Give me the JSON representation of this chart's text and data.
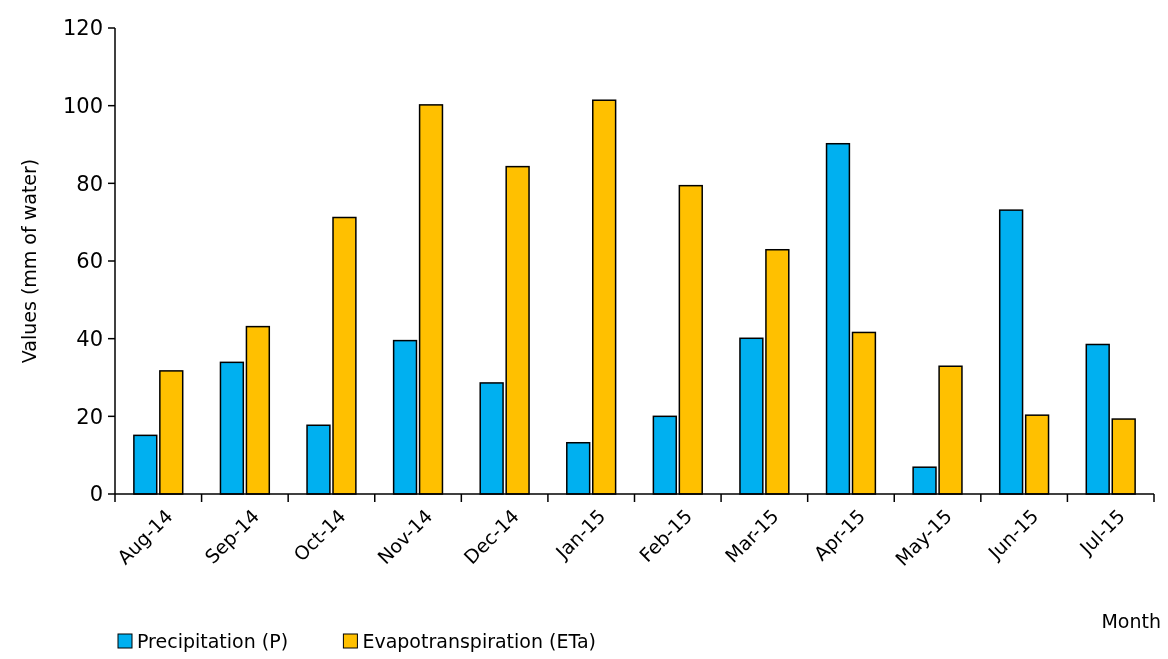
{
  "chart_data": {
    "type": "bar",
    "xlabel": "Month",
    "ylabel": "Values (mm of water)",
    "categories": [
      "Aug-14",
      "Sep-14",
      "Oct-14",
      "Nov-14",
      "Dec-14",
      "Jan-15",
      "Feb-15",
      "Mar-15",
      "Apr-15",
      "May-15",
      "Jun-15",
      "Jul-15"
    ],
    "series": [
      {
        "name": "Precipitation (P)",
        "color": "#00b0f0",
        "values": [
          15.1,
          33.9,
          17.7,
          39.5,
          28.6,
          13.2,
          20,
          40.1,
          90.2,
          6.9,
          73.1,
          38.5
        ]
      },
      {
        "name": "Evapotranspiration (ETa)",
        "color": "#ffc000",
        "values": [
          31.7,
          43.1,
          71.2,
          100.2,
          84.3,
          101.4,
          79.4,
          62.9,
          41.6,
          32.9,
          20.3,
          19.3
        ]
      }
    ],
    "ylim": [
      0,
      120
    ],
    "yticks": [
      0,
      20,
      40,
      60,
      80,
      100,
      120
    ],
    "grid": false,
    "legend": "bottom left"
  }
}
